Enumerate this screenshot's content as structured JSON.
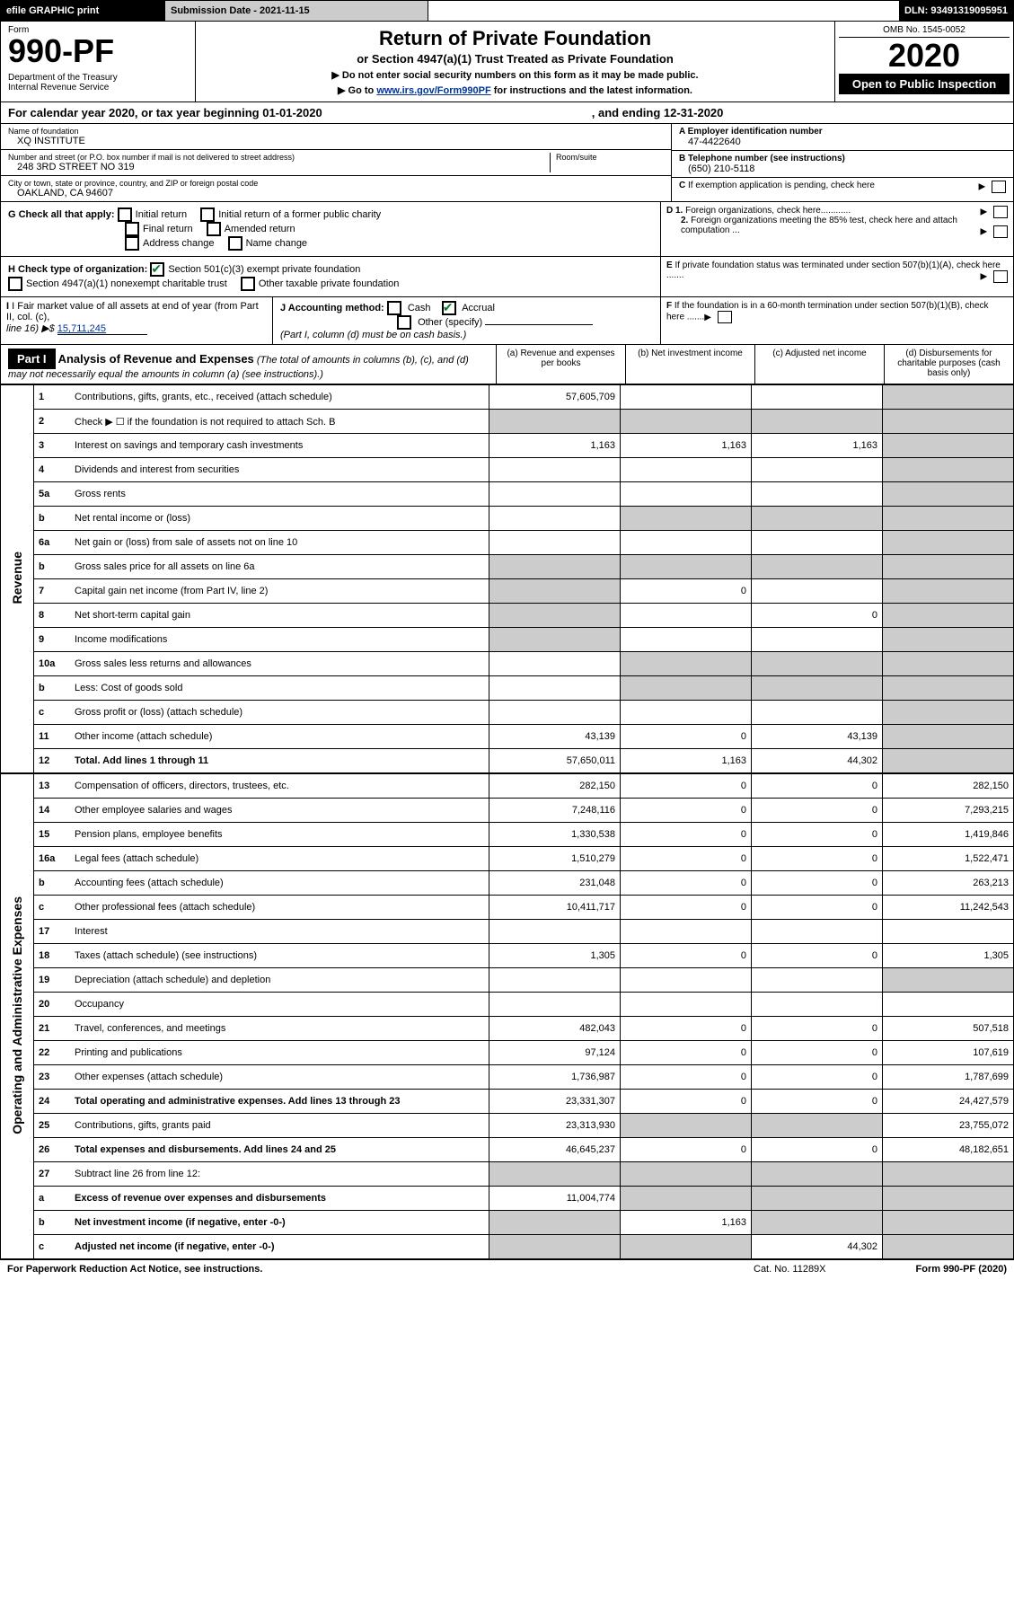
{
  "topbar": {
    "efile": "efile GRAPHIC print",
    "subdate": "Submission Date - 2021-11-15",
    "dln": "DLN: 93491319095951"
  },
  "header": {
    "form_label": "Form",
    "form_num": "990-PF",
    "dept": "Department of the Treasury\nInternal Revenue Service",
    "title": "Return of Private Foundation",
    "sub": "or Section 4947(a)(1) Trust Treated as Private Foundation",
    "note1": "▶ Do not enter social security numbers on this form as it may be made public.",
    "note2_pre": "▶ Go to ",
    "note2_link": "www.irs.gov/Form990PF",
    "note2_post": " for instructions and the latest information.",
    "omb": "OMB No. 1545-0052",
    "year": "2020",
    "otp": "Open to Public Inspection"
  },
  "calyear": {
    "begin": "For calendar year 2020, or tax year beginning 01-01-2020",
    "end": ", and ending 12-31-2020"
  },
  "entity": {
    "name_label": "Name of foundation",
    "name": "XQ INSTITUTE",
    "addr_label": "Number and street (or P.O. box number if mail is not delivered to street address)",
    "addr": "248 3RD STREET NO 319",
    "room_label": "Room/suite",
    "city_label": "City or town, state or province, country, and ZIP or foreign postal code",
    "city": "OAKLAND, CA  94607",
    "a_label": "A Employer identification number",
    "a_val": "47-4422640",
    "b_label": "B Telephone number (see instructions)",
    "b_val": "(650) 210-5118",
    "c_label": "C If exemption application is pending, check here"
  },
  "checks": {
    "g_label": "G Check all that apply:",
    "g_opts": [
      "Initial return",
      "Initial return of a former public charity",
      "Final return",
      "Amended return",
      "Address change",
      "Name change"
    ],
    "h_label": "H Check type of organization:",
    "h1": "Section 501(c)(3) exempt private foundation",
    "h2": "Section 4947(a)(1) nonexempt charitable trust",
    "h3": "Other taxable private foundation",
    "d1": "D 1. Foreign organizations, check here............",
    "d2": "2. Foreign organizations meeting the 85% test, check here and attach computation ...",
    "e": "E  If private foundation status was terminated under section 507(b)(1)(A), check here .......",
    "i_label": "I Fair market value of all assets at end of year (from Part II, col. (c),",
    "i_line": "line 16) ▶$ ",
    "i_val": "15,711,245",
    "j_label": "J Accounting method:",
    "j_cash": "Cash",
    "j_accrual": "Accrual",
    "j_other": "Other (specify)",
    "j_note": "(Part I, column (d) must be on cash basis.)",
    "f": "F  If the foundation is in a 60-month termination under section 507(b)(1)(B), check here ......."
  },
  "part1": {
    "hdr": "Part I",
    "title": "Analysis of Revenue and Expenses",
    "note": "(The total of amounts in columns (b), (c), and (d) may not necessarily equal the amounts in column (a) (see instructions).)",
    "cols": {
      "a": "(a)  Revenue and expenses per books",
      "b": "(b)  Net investment income",
      "c": "(c)  Adjusted net income",
      "d": "(d)  Disbursements for charitable purposes (cash basis only)"
    }
  },
  "rows": [
    {
      "n": "1",
      "desc": "Contributions, gifts, grants, etc., received (attach schedule)",
      "a": "57,605,709",
      "b": "",
      "c": "",
      "d": ""
    },
    {
      "n": "2",
      "desc": "Check ▶ ☐ if the foundation is not required to attach Sch. B",
      "a": "",
      "b": "",
      "c": "",
      "d": "",
      "shade_bcd": true,
      "shade_a": true
    },
    {
      "n": "3",
      "desc": "Interest on savings and temporary cash investments",
      "a": "1,163",
      "b": "1,163",
      "c": "1,163",
      "d": ""
    },
    {
      "n": "4",
      "desc": "Dividends and interest from securities",
      "a": "",
      "b": "",
      "c": "",
      "d": ""
    },
    {
      "n": "5a",
      "desc": "Gross rents",
      "a": "",
      "b": "",
      "c": "",
      "d": ""
    },
    {
      "n": "b",
      "desc": "Net rental income or (loss)",
      "a": "",
      "b": "",
      "c": "",
      "d": "",
      "shade_bcd": true
    },
    {
      "n": "6a",
      "desc": "Net gain or (loss) from sale of assets not on line 10",
      "a": "",
      "b": "",
      "c": "",
      "d": ""
    },
    {
      "n": "b",
      "desc": "Gross sales price for all assets on line 6a",
      "a": "",
      "b": "",
      "c": "",
      "d": "",
      "shade_bcd": true,
      "shade_a": true
    },
    {
      "n": "7",
      "desc": "Capital gain net income (from Part IV, line 2)",
      "a": "",
      "b": "0",
      "c": "",
      "d": "",
      "shade_a": true
    },
    {
      "n": "8",
      "desc": "Net short-term capital gain",
      "a": "",
      "b": "",
      "c": "0",
      "d": "",
      "shade_a": true
    },
    {
      "n": "9",
      "desc": "Income modifications",
      "a": "",
      "b": "",
      "c": "",
      "d": "",
      "shade_a": true
    },
    {
      "n": "10a",
      "desc": "Gross sales less returns and allowances",
      "a": "",
      "b": "",
      "c": "",
      "d": "",
      "shade_bcd": true
    },
    {
      "n": "b",
      "desc": "Less: Cost of goods sold",
      "a": "",
      "b": "",
      "c": "",
      "d": "",
      "shade_bcd": true
    },
    {
      "n": "c",
      "desc": "Gross profit or (loss) (attach schedule)",
      "a": "",
      "b": "",
      "c": "",
      "d": ""
    },
    {
      "n": "11",
      "desc": "Other income (attach schedule)",
      "a": "43,139",
      "b": "0",
      "c": "43,139",
      "d": ""
    },
    {
      "n": "12",
      "desc": "Total. Add lines 1 through 11",
      "a": "57,650,011",
      "b": "1,163",
      "c": "44,302",
      "d": "",
      "bold": true
    }
  ],
  "exp_rows": [
    {
      "n": "13",
      "desc": "Compensation of officers, directors, trustees, etc.",
      "a": "282,150",
      "b": "0",
      "c": "0",
      "d": "282,150"
    },
    {
      "n": "14",
      "desc": "Other employee salaries and wages",
      "a": "7,248,116",
      "b": "0",
      "c": "0",
      "d": "7,293,215"
    },
    {
      "n": "15",
      "desc": "Pension plans, employee benefits",
      "a": "1,330,538",
      "b": "0",
      "c": "0",
      "d": "1,419,846"
    },
    {
      "n": "16a",
      "desc": "Legal fees (attach schedule)",
      "a": "1,510,279",
      "b": "0",
      "c": "0",
      "d": "1,522,471"
    },
    {
      "n": "b",
      "desc": "Accounting fees (attach schedule)",
      "a": "231,048",
      "b": "0",
      "c": "0",
      "d": "263,213"
    },
    {
      "n": "c",
      "desc": "Other professional fees (attach schedule)",
      "a": "10,411,717",
      "b": "0",
      "c": "0",
      "d": "11,242,543"
    },
    {
      "n": "17",
      "desc": "Interest",
      "a": "",
      "b": "",
      "c": "",
      "d": ""
    },
    {
      "n": "18",
      "desc": "Taxes (attach schedule) (see instructions)",
      "a": "1,305",
      "b": "0",
      "c": "0",
      "d": "1,305"
    },
    {
      "n": "19",
      "desc": "Depreciation (attach schedule) and depletion",
      "a": "",
      "b": "",
      "c": "",
      "d": "",
      "shade_d": true
    },
    {
      "n": "20",
      "desc": "Occupancy",
      "a": "",
      "b": "",
      "c": "",
      "d": ""
    },
    {
      "n": "21",
      "desc": "Travel, conferences, and meetings",
      "a": "482,043",
      "b": "0",
      "c": "0",
      "d": "507,518"
    },
    {
      "n": "22",
      "desc": "Printing and publications",
      "a": "97,124",
      "b": "0",
      "c": "0",
      "d": "107,619"
    },
    {
      "n": "23",
      "desc": "Other expenses (attach schedule)",
      "a": "1,736,987",
      "b": "0",
      "c": "0",
      "d": "1,787,699"
    },
    {
      "n": "24",
      "desc": "Total operating and administrative expenses. Add lines 13 through 23",
      "a": "23,331,307",
      "b": "0",
      "c": "0",
      "d": "24,427,579",
      "bold": true
    },
    {
      "n": "25",
      "desc": "Contributions, gifts, grants paid",
      "a": "23,313,930",
      "b": "",
      "c": "",
      "d": "23,755,072",
      "shade_bc": true
    },
    {
      "n": "26",
      "desc": "Total expenses and disbursements. Add lines 24 and 25",
      "a": "46,645,237",
      "b": "0",
      "c": "0",
      "d": "48,182,651",
      "bold": true
    },
    {
      "n": "27",
      "desc": "Subtract line 26 from line 12:",
      "a": "",
      "b": "",
      "c": "",
      "d": "",
      "shade_all": true
    },
    {
      "n": "a",
      "desc": "Excess of revenue over expenses and disbursements",
      "a": "11,004,774",
      "b": "",
      "c": "",
      "d": "",
      "bold": true,
      "shade_bcd": true
    },
    {
      "n": "b",
      "desc": "Net investment income (if negative, enter -0-)",
      "a": "",
      "b": "1,163",
      "c": "",
      "d": "",
      "bold": true,
      "shade_a": true,
      "shade_cd": true
    },
    {
      "n": "c",
      "desc": "Adjusted net income (if negative, enter -0-)",
      "a": "",
      "b": "",
      "c": "44,302",
      "d": "",
      "bold": true,
      "shade_a": true,
      "shade_d": true,
      "shade_b": true
    }
  ],
  "sidelabels": {
    "rev": "Revenue",
    "exp": "Operating and Administrative Expenses"
  },
  "footer": {
    "left": "For Paperwork Reduction Act Notice, see instructions.",
    "mid": "Cat. No. 11289X",
    "right": "Form 990-PF (2020)"
  }
}
